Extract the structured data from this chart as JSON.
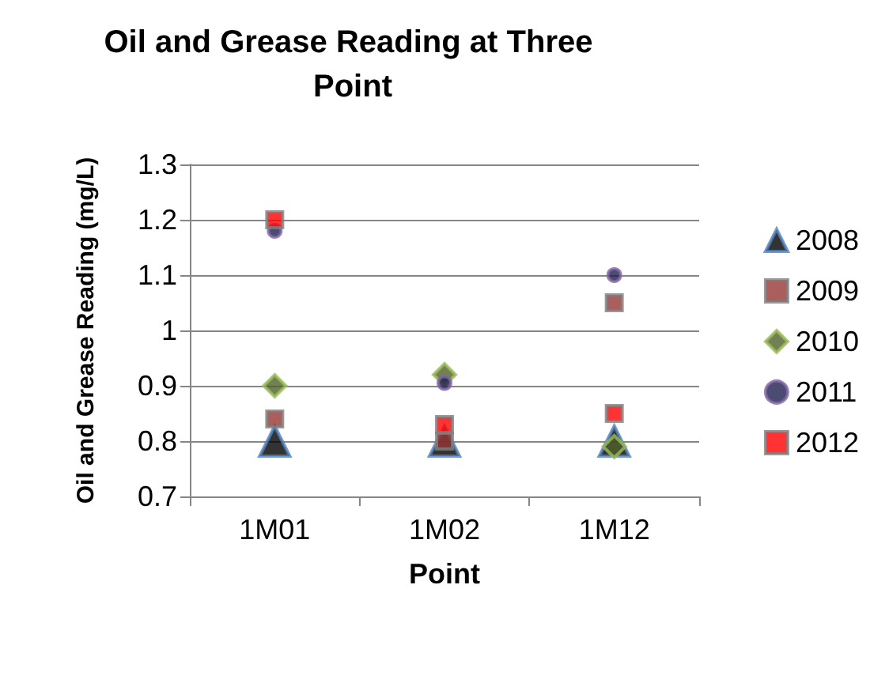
{
  "chart_data": {
    "type": "scatter",
    "title": "Oil and Grease Reading at Three Point",
    "xlabel": "Point",
    "ylabel": "Oil and Grease Reading (mg/L)",
    "categories": [
      "1M01",
      "1M02",
      "1M12"
    ],
    "series": [
      {
        "name": "2008",
        "color": "#000000",
        "marker": "triangle",
        "values": [
          0.8,
          0.8,
          0.8
        ]
      },
      {
        "name": "2009",
        "color": "#953735",
        "marker": "square",
        "values": [
          0.84,
          0.8,
          1.05
        ]
      },
      {
        "name": "2010",
        "color": "#4f6228",
        "marker": "diamond",
        "values": [
          0.9,
          0.92,
          0.79
        ]
      },
      {
        "name": "2011",
        "color": "#1f1f4f",
        "marker": "circle",
        "values": [
          1.18,
          0.905,
          1.1
        ]
      },
      {
        "name": "2012",
        "color": "#ff0000",
        "marker": "square",
        "values": [
          1.2,
          0.83,
          0.85
        ]
      }
    ],
    "ylim": [
      0.7,
      1.3
    ],
    "yticks": [
      0.7,
      0.8,
      0.9,
      1,
      1.1,
      1.2,
      1.3
    ],
    "grid": "y",
    "legend": "right"
  }
}
